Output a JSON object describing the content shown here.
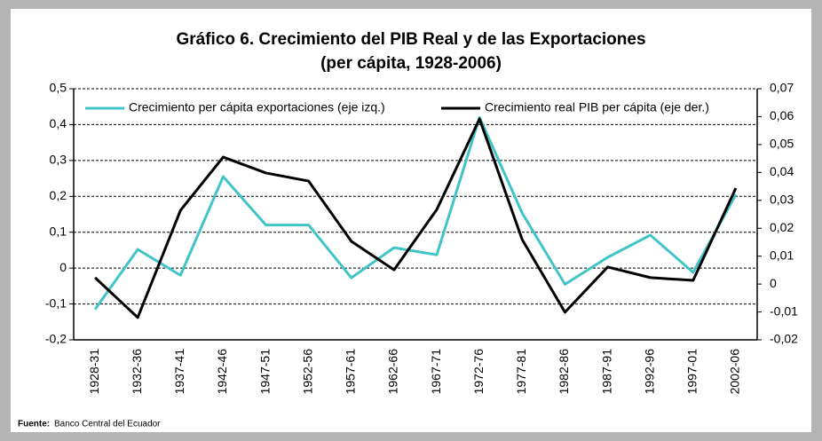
{
  "chart_data": {
    "type": "line",
    "title": [
      "Gráfico 6. Crecimiento del PIB Real y de las Exportaciones",
      "(per cápita,  1928-2006)"
    ],
    "categories": [
      "1928-31",
      "1932-36",
      "1937-41",
      "1942-46",
      "1947-51",
      "1952-56",
      "1957-61",
      "1962-66",
      "1967-71",
      "1972-76",
      "1977-81",
      "1982-86",
      "1987-91",
      "1992-96",
      "1997-01",
      "2002-06"
    ],
    "series": [
      {
        "name": "Crecimiento per cápita exportaciones (eje izq.)",
        "color": "#40c4c8",
        "axis": "y",
        "values": [
          -0.115,
          0.052,
          -0.02,
          0.255,
          0.12,
          0.12,
          -0.027,
          0.057,
          0.037,
          0.42,
          0.153,
          -0.045,
          0.03,
          0.092,
          -0.012,
          0.205
        ]
      },
      {
        "name": "Crecimiento real PIB per cápita (eje der.)",
        "color": "#000000",
        "axis": "y2",
        "values": [
          0.0023,
          -0.012,
          0.0264,
          0.0455,
          0.0398,
          0.0369,
          0.0153,
          0.0051,
          0.0267,
          0.0592,
          0.0159,
          -0.0101,
          0.0061,
          0.0023,
          0.0013,
          0.0344
        ]
      }
    ],
    "ylim": [
      -0.2,
      0.5
    ],
    "yticks": [
      {
        "value": -0.2,
        "label": "-0,2"
      },
      {
        "value": -0.1,
        "label": "-0,1"
      },
      0,
      {
        "value": 0.1,
        "label": "0,1"
      },
      {
        "value": 0.2,
        "label": "0,2"
      },
      {
        "value": 0.3,
        "label": "0,3"
      },
      {
        "value": 0.4,
        "label": "0,4"
      },
      {
        "value": 0.5,
        "label": "0,5"
      }
    ],
    "y2lim": [
      -0.02,
      0.07
    ],
    "y2ticks": [
      {
        "value": -0.02,
        "label": "-0,02"
      },
      {
        "value": -0.01,
        "label": "-0,01"
      },
      0,
      {
        "value": 0.01,
        "label": "0,01"
      },
      {
        "value": 0.02,
        "label": "0,02"
      },
      {
        "value": 0.03,
        "label": "0,03"
      },
      {
        "value": 0.04,
        "label": "0,04"
      },
      {
        "value": 0.05,
        "label": "0,05"
      },
      {
        "value": 0.06,
        "label": "0,06"
      },
      {
        "value": 0.07,
        "label": "0,07"
      }
    ],
    "grid": true,
    "legend": "top",
    "source": {
      "label": "Fuente:",
      "text": "Banco Central del Ecuador"
    }
  }
}
